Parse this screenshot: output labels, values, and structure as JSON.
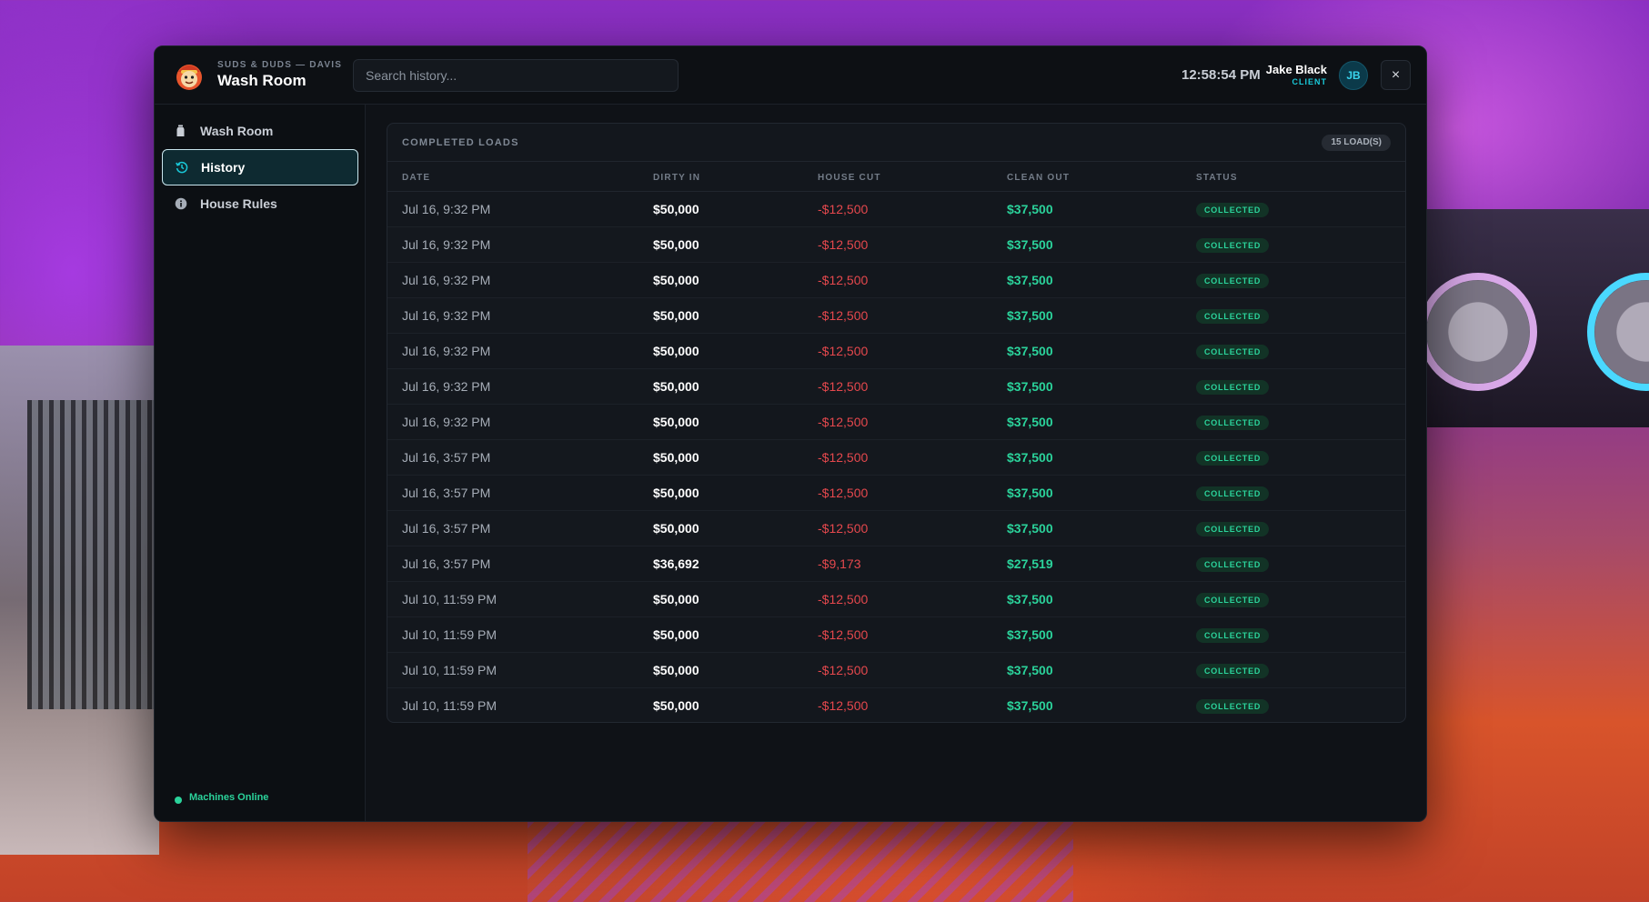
{
  "header": {
    "brand_sub": "SUDS & DUDS — DAVIS",
    "brand_title": "Wash Room",
    "search_placeholder": "Search history...",
    "clock": "12:58:54 PM",
    "user_name": "Jake Black",
    "user_role": "CLIENT",
    "avatar_initials": "JB",
    "close_label": "×"
  },
  "sidebar": {
    "items": [
      {
        "label": "Wash Room",
        "icon": "bottle-icon",
        "active": false
      },
      {
        "label": "History",
        "icon": "history-icon",
        "active": true
      },
      {
        "label": "House Rules",
        "icon": "info-icon",
        "active": false
      }
    ],
    "status_text": "Machines Online",
    "status_color": "#2bd39b"
  },
  "panel": {
    "title": "COMPLETED LOADS",
    "count": "15 LOAD(S)",
    "columns": [
      "DATE",
      "DIRTY IN",
      "HOUSE CUT",
      "CLEAN OUT",
      "STATUS"
    ],
    "rows": [
      {
        "date": "Jul 16, 9:32 PM",
        "dirty": "$50,000",
        "cut": "-$12,500",
        "clean": "$37,500",
        "status": "COLLECTED"
      },
      {
        "date": "Jul 16, 9:32 PM",
        "dirty": "$50,000",
        "cut": "-$12,500",
        "clean": "$37,500",
        "status": "COLLECTED"
      },
      {
        "date": "Jul 16, 9:32 PM",
        "dirty": "$50,000",
        "cut": "-$12,500",
        "clean": "$37,500",
        "status": "COLLECTED"
      },
      {
        "date": "Jul 16, 9:32 PM",
        "dirty": "$50,000",
        "cut": "-$12,500",
        "clean": "$37,500",
        "status": "COLLECTED"
      },
      {
        "date": "Jul 16, 9:32 PM",
        "dirty": "$50,000",
        "cut": "-$12,500",
        "clean": "$37,500",
        "status": "COLLECTED"
      },
      {
        "date": "Jul 16, 9:32 PM",
        "dirty": "$50,000",
        "cut": "-$12,500",
        "clean": "$37,500",
        "status": "COLLECTED"
      },
      {
        "date": "Jul 16, 9:32 PM",
        "dirty": "$50,000",
        "cut": "-$12,500",
        "clean": "$37,500",
        "status": "COLLECTED"
      },
      {
        "date": "Jul 16, 3:57 PM",
        "dirty": "$50,000",
        "cut": "-$12,500",
        "clean": "$37,500",
        "status": "COLLECTED"
      },
      {
        "date": "Jul 16, 3:57 PM",
        "dirty": "$50,000",
        "cut": "-$12,500",
        "clean": "$37,500",
        "status": "COLLECTED"
      },
      {
        "date": "Jul 16, 3:57 PM",
        "dirty": "$50,000",
        "cut": "-$12,500",
        "clean": "$37,500",
        "status": "COLLECTED"
      },
      {
        "date": "Jul 16, 3:57 PM",
        "dirty": "$36,692",
        "cut": "-$9,173",
        "clean": "$27,519",
        "status": "COLLECTED"
      },
      {
        "date": "Jul 10, 11:59 PM",
        "dirty": "$50,000",
        "cut": "-$12,500",
        "clean": "$37,500",
        "status": "COLLECTED"
      },
      {
        "date": "Jul 10, 11:59 PM",
        "dirty": "$50,000",
        "cut": "-$12,500",
        "clean": "$37,500",
        "status": "COLLECTED"
      },
      {
        "date": "Jul 10, 11:59 PM",
        "dirty": "$50,000",
        "cut": "-$12,500",
        "clean": "$37,500",
        "status": "COLLECTED"
      },
      {
        "date": "Jul 10, 11:59 PM",
        "dirty": "$50,000",
        "cut": "-$12,500",
        "clean": "$37,500",
        "status": "COLLECTED"
      }
    ]
  },
  "colors": {
    "accent": "#19c8d8",
    "positive": "#2bd39b",
    "negative": "#e5484d"
  }
}
